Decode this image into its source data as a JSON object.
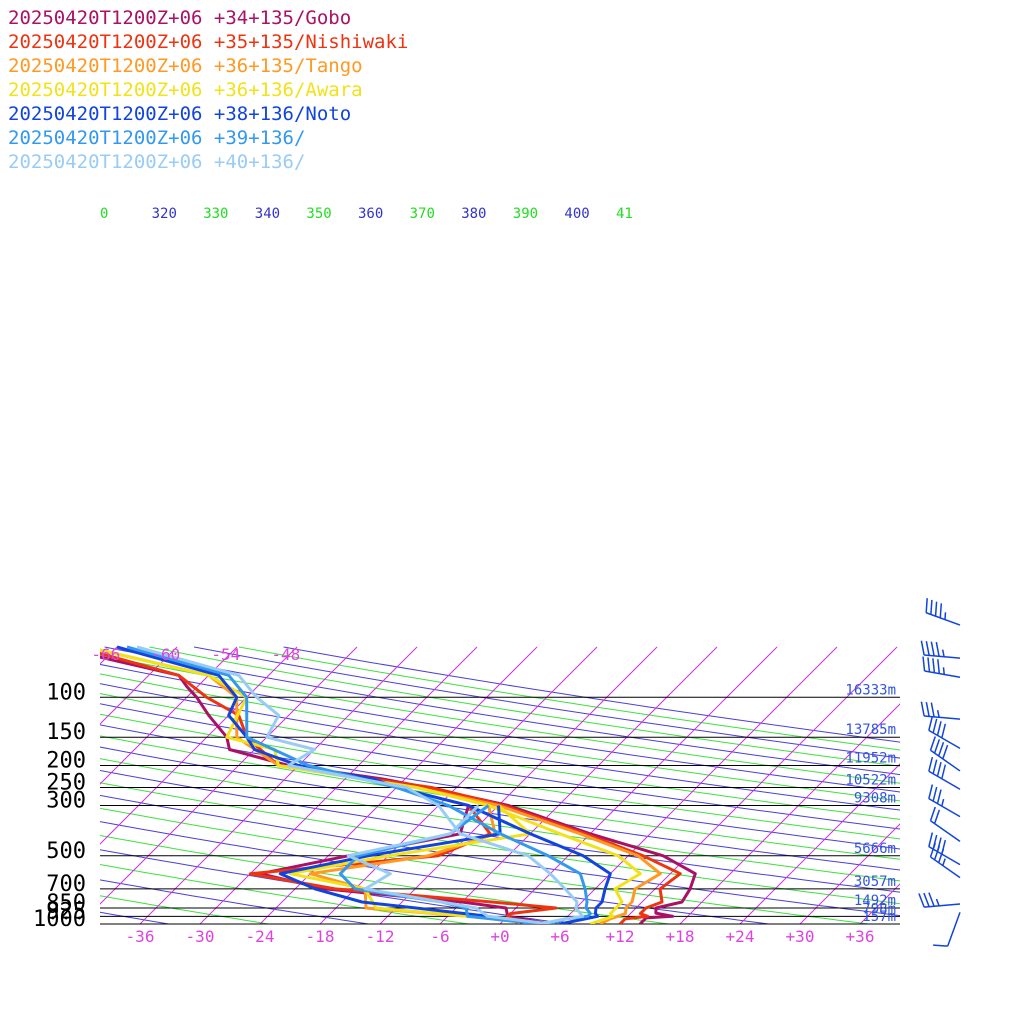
{
  "legend": [
    {
      "text": "20250420T1200Z+06 +34+135/Gobo",
      "color": "#aa1166"
    },
    {
      "text": "20250420T1200Z+06 +35+135/Nishiwaki",
      "color": "#ee3311"
    },
    {
      "text": "20250420T1200Z+06 +36+135/Tango",
      "color": "#ff9922"
    },
    {
      "text": "20250420T1200Z+06 +36+136/Awara",
      "color": "#f2e21a"
    },
    {
      "text": "20250420T1200Z+06 +38+136/Noto",
      "color": "#1144dd"
    },
    {
      "text": "20250420T1200Z+06 +39+136/",
      "color": "#3399ee"
    },
    {
      "text": "20250420T1200Z+06 +40+136/",
      "color": "#99ccf5"
    }
  ],
  "chart_data": {
    "type": "line",
    "title": "",
    "pressure_levels": [
      {
        "p": 100,
        "label": "100",
        "height": "16333m"
      },
      {
        "p": 150,
        "label": "150",
        "height": "13785m"
      },
      {
        "p": 200,
        "label": "200",
        "height": "11952m"
      },
      {
        "p": 250,
        "label": "250",
        "height": "10522m"
      },
      {
        "p": 300,
        "label": "300",
        "height": "9308m"
      },
      {
        "p": 500,
        "label": "500",
        "height": "5666m"
      },
      {
        "p": 700,
        "label": "700",
        "height": "3057m"
      },
      {
        "p": 850,
        "label": "850",
        "height": "1492m"
      },
      {
        "p": 925,
        "label": "925",
        "height": "798m"
      },
      {
        "p": 1000,
        "label": "1000",
        "height": "157m"
      }
    ],
    "x_ticks": [
      "-36",
      "-30",
      "-24",
      "-18",
      "-12",
      "-6",
      "+0",
      "+6",
      "+12",
      "+18",
      "+24",
      "+30",
      "+36"
    ],
    "x_tick_values": [
      -36,
      -30,
      -24,
      -18,
      -12,
      -6,
      0,
      6,
      12,
      18,
      24,
      30,
      36
    ],
    "upper_temp_labels": [
      "-66",
      "-60",
      "-54",
      "-48"
    ],
    "theta_labels": [
      {
        "text": "0",
        "color": "#22dd22"
      },
      {
        "text": "320",
        "color": "#3333cc"
      },
      {
        "text": "330",
        "color": "#22dd22"
      },
      {
        "text": "340",
        "color": "#3333cc"
      },
      {
        "text": "350",
        "color": "#22dd22"
      },
      {
        "text": "360",
        "color": "#3333cc"
      },
      {
        "text": "370",
        "color": "#22dd22"
      },
      {
        "text": "380",
        "color": "#3333cc"
      },
      {
        "text": "390",
        "color": "#22dd22"
      },
      {
        "text": "400",
        "color": "#3333cc"
      },
      {
        "text": "41",
        "color": "#22dd22"
      }
    ],
    "xlim": [
      -40,
      40
    ],
    "plim": [
      1000,
      60
    ],
    "skew_x_per_log_p": 45,
    "grid": true,
    "legend_position": "top-left",
    "series": [
      {
        "name": "20250420T1200Z+06 +34+135/Gobo",
        "color": "#aa1166",
        "temperature": [
          [
            1000,
            14
          ],
          [
            940,
            14
          ],
          [
            925,
            16.5
          ],
          [
            895,
            14.5
          ],
          [
            850,
            14
          ],
          [
            800,
            16
          ],
          [
            700,
            15.5
          ],
          [
            600,
            14.5
          ],
          [
            500,
            9.5
          ],
          [
            400,
            0
          ],
          [
            300,
            -11
          ],
          [
            250,
            -21
          ],
          [
            230,
            -26
          ],
          [
            200,
            -37
          ],
          [
            170,
            -44.5
          ],
          [
            150,
            -46
          ],
          [
            120,
            -50
          ],
          [
            100,
            -53
          ],
          [
            90,
            -55
          ],
          [
            80,
            -57
          ],
          [
            70,
            -64
          ],
          [
            60,
            -72
          ]
        ],
        "dewpoint": [
          [
            1000,
            5
          ],
          [
            925,
            0
          ],
          [
            850,
            -1
          ],
          [
            800,
            -6
          ],
          [
            700,
            -21
          ],
          [
            600,
            -29
          ],
          [
            500,
            -22
          ],
          [
            400,
            -13
          ],
          [
            300,
            -15
          ]
        ]
      },
      {
        "name": "20250420T1200Z+06 +35+135/Nishiwaki",
        "color": "#ee3311",
        "temperature": [
          [
            1000,
            12
          ],
          [
            950,
            12
          ],
          [
            925,
            14
          ],
          [
            900,
            13
          ],
          [
            850,
            13
          ],
          [
            800,
            14
          ],
          [
            700,
            12.5
          ],
          [
            600,
            13
          ],
          [
            500,
            7.5
          ],
          [
            400,
            -0.5
          ],
          [
            300,
            -11.5
          ],
          [
            250,
            -20.5
          ],
          [
            230,
            -27
          ],
          [
            200,
            -38
          ],
          [
            150,
            -44
          ],
          [
            120,
            -47
          ],
          [
            100,
            -52
          ],
          [
            80,
            -57
          ],
          [
            60,
            -70
          ]
        ],
        "dewpoint": [
          [
            1000,
            2
          ],
          [
            925,
            0
          ],
          [
            900,
            0
          ],
          [
            850,
            4
          ],
          [
            800,
            -3
          ],
          [
            700,
            -20
          ],
          [
            600,
            -30
          ],
          [
            500,
            -13
          ],
          [
            400,
            -10
          ],
          [
            300,
            -15
          ]
        ]
      },
      {
        "name": "20250420T1200Z+06 +36+135/Tango",
        "color": "#ff9922",
        "temperature": [
          [
            1000,
            10
          ],
          [
            950,
            10.5
          ],
          [
            925,
            11
          ],
          [
            900,
            11.5
          ],
          [
            850,
            11
          ],
          [
            800,
            11
          ],
          [
            700,
            10
          ],
          [
            600,
            11
          ],
          [
            500,
            7
          ],
          [
            400,
            -1
          ],
          [
            300,
            -12
          ],
          [
            250,
            -22
          ],
          [
            200,
            -38
          ],
          [
            150,
            -45
          ],
          [
            100,
            -49
          ],
          [
            80,
            -54
          ],
          [
            60,
            -69
          ]
        ],
        "dewpoint": [
          [
            1000,
            5
          ],
          [
            925,
            -4
          ],
          [
            850,
            -15
          ],
          [
            700,
            -17
          ],
          [
            600,
            -24
          ],
          [
            500,
            -14
          ],
          [
            400,
            -9.5
          ],
          [
            300,
            -13
          ]
        ]
      },
      {
        "name": "20250420T1200Z+06 +36+136/Awara",
        "color": "#f2e21a",
        "temperature": [
          [
            1000,
            9
          ],
          [
            950,
            10
          ],
          [
            925,
            10.5
          ],
          [
            900,
            10
          ],
          [
            850,
            10
          ],
          [
            800,
            10
          ],
          [
            700,
            8
          ],
          [
            600,
            9
          ],
          [
            500,
            5
          ],
          [
            400,
            -3
          ],
          [
            300,
            -13
          ],
          [
            250,
            -22
          ],
          [
            200,
            -38
          ],
          [
            170,
            -40
          ],
          [
            150,
            -46
          ],
          [
            100,
            -48
          ],
          [
            80,
            -54
          ],
          [
            60,
            -69
          ]
        ],
        "dewpoint": [
          [
            1000,
            4
          ],
          [
            925,
            -4
          ],
          [
            850,
            -14
          ],
          [
            700,
            -17
          ],
          [
            600,
            -26
          ],
          [
            500,
            -18
          ],
          [
            400,
            -6
          ],
          [
            300,
            -12
          ]
        ]
      },
      {
        "name": "20250420T1200Z+06 +38+136/Noto",
        "color": "#1144dd",
        "temperature": [
          [
            1000,
            6
          ],
          [
            950,
            8
          ],
          [
            925,
            9
          ],
          [
            900,
            8.5
          ],
          [
            850,
            8
          ],
          [
            800,
            8
          ],
          [
            700,
            7
          ],
          [
            600,
            6
          ],
          [
            500,
            1.5
          ],
          [
            400,
            -6
          ],
          [
            300,
            -15
          ],
          [
            250,
            -24
          ],
          [
            230,
            -27
          ],
          [
            200,
            -36
          ],
          [
            170,
            -42
          ],
          [
            150,
            -44
          ],
          [
            120,
            -48
          ],
          [
            100,
            -49
          ],
          [
            80,
            -53
          ],
          [
            60,
            -66
          ]
        ],
        "dewpoint": [
          [
            1000,
            4
          ],
          [
            925,
            -2
          ],
          [
            850,
            -10
          ],
          [
            800,
            -16
          ],
          [
            700,
            -22
          ],
          [
            600,
            -27
          ],
          [
            500,
            -20
          ],
          [
            400,
            -9
          ],
          [
            300,
            -12
          ]
        ]
      },
      {
        "name": "20250420T1200Z+06 +39+136/",
        "color": "#3399ee",
        "temperature": [
          [
            1000,
            5
          ],
          [
            950,
            6
          ],
          [
            925,
            8
          ],
          [
            900,
            8
          ],
          [
            850,
            7
          ],
          [
            800,
            6.5
          ],
          [
            700,
            5
          ],
          [
            600,
            3
          ],
          [
            500,
            -2
          ],
          [
            400,
            -9
          ],
          [
            300,
            -17
          ],
          [
            250,
            -24
          ],
          [
            200,
            -35
          ],
          [
            150,
            -44
          ],
          [
            100,
            -48
          ],
          [
            80,
            -52
          ],
          [
            60,
            -65
          ]
        ],
        "dewpoint": [
          [
            1000,
            4
          ],
          [
            925,
            -4
          ],
          [
            850,
            -5
          ],
          [
            800,
            -8
          ],
          [
            700,
            -18
          ],
          [
            600,
            -21
          ],
          [
            500,
            -21
          ],
          [
            400,
            -14
          ],
          [
            300,
            -13
          ]
        ]
      },
      {
        "name": "20250420T1200Z+06 +40+136/",
        "color": "#99ccf5",
        "temperature": [
          [
            1000,
            4
          ],
          [
            950,
            6
          ],
          [
            925,
            7.5
          ],
          [
            900,
            7
          ],
          [
            850,
            6
          ],
          [
            800,
            5.5
          ],
          [
            700,
            3
          ],
          [
            600,
            0
          ],
          [
            500,
            -4
          ],
          [
            400,
            -13
          ],
          [
            300,
            -18
          ],
          [
            250,
            -23
          ],
          [
            200,
            -37
          ],
          [
            170,
            -36
          ],
          [
            150,
            -42
          ],
          [
            120,
            -43
          ],
          [
            100,
            -47
          ],
          [
            80,
            -51
          ],
          [
            60,
            -64
          ]
        ],
        "dewpoint": [
          [
            1000,
            5
          ],
          [
            925,
            -2
          ],
          [
            850,
            -4
          ],
          [
            800,
            -8
          ],
          [
            700,
            -17
          ],
          [
            600,
            -16
          ],
          [
            500,
            -22
          ],
          [
            400,
            -14
          ],
          [
            300,
            -14
          ]
        ]
      }
    ],
    "wind_barbs": [
      {
        "p": 50,
        "dir": 290,
        "spd": 45
      },
      {
        "p": 70,
        "dir": 275,
        "spd": 45
      },
      {
        "p": 85,
        "dir": 280,
        "spd": 45
      },
      {
        "p": 130,
        "dir": 275,
        "spd": 35
      },
      {
        "p": 175,
        "dir": 300,
        "spd": 40
      },
      {
        "p": 220,
        "dir": 305,
        "spd": 40
      },
      {
        "p": 265,
        "dir": 300,
        "spd": 40
      },
      {
        "p": 350,
        "dir": 300,
        "spd": 35
      },
      {
        "p": 450,
        "dir": 305,
        "spd": 20
      },
      {
        "p": 570,
        "dir": 300,
        "spd": 40
      },
      {
        "p": 650,
        "dir": 305,
        "spd": 35
      },
      {
        "p": 850,
        "dir": 265,
        "spd": 35
      },
      {
        "p": 925,
        "dir": 200,
        "spd": 10
      }
    ]
  }
}
